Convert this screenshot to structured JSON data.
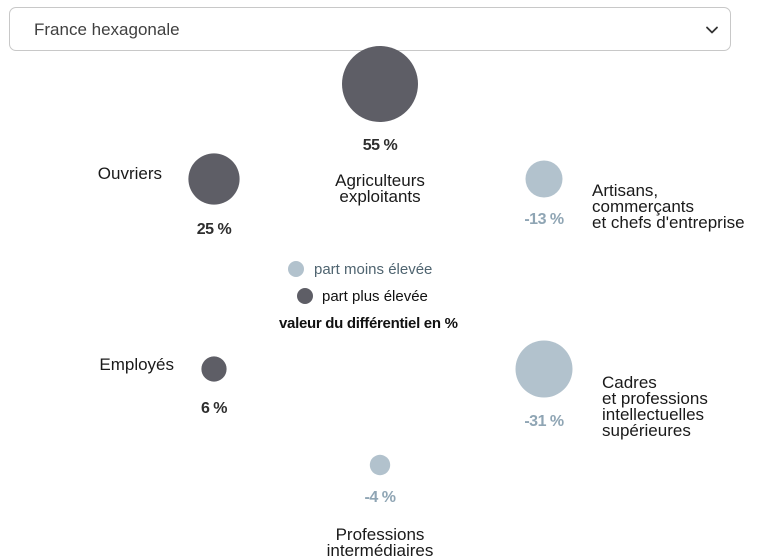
{
  "selector": {
    "value": "France hexagonale",
    "icon": "chevron-down-icon"
  },
  "colors": {
    "higher": "#5e5e66",
    "lower": "#b2c2cd",
    "lower_text": "#8fa5b4",
    "higher_text": "#2e2e2e"
  },
  "legend": {
    "lower_label": "part moins élevée",
    "higher_label": "part plus élevée",
    "title": "valeur du différentiel en %"
  },
  "chart_data": {
    "type": "scatter",
    "encoding": "bubble size = absolute differential",
    "categories": [
      "Agriculteurs exploitants",
      "Artisans, commerçants et chefs d'entreprise",
      "Cadres et professions intellectuelles supérieures",
      "Professions intermédiaires",
      "Employés",
      "Ouvriers"
    ],
    "points": [
      {
        "key": "agriculteurs",
        "label_lines": [
          "Agriculteurs",
          "exploitants"
        ],
        "value": 55,
        "value_label": "55 %"
      },
      {
        "key": "artisans",
        "label_lines": [
          "Artisans,",
          "commerçants",
          "et chefs d'entreprise"
        ],
        "value": -13,
        "value_label": "-13 %"
      },
      {
        "key": "cadres",
        "label_lines": [
          "Cadres",
          "et professions",
          "intellectuelles",
          "supérieures"
        ],
        "value": -31,
        "value_label": "-31 %"
      },
      {
        "key": "intermediaires",
        "label_lines": [
          "Professions",
          "intermédiaires"
        ],
        "value": -4,
        "value_label": "-4 %"
      },
      {
        "key": "employes",
        "label_lines": [
          "Employés"
        ],
        "value": 6,
        "value_label": "6 %"
      },
      {
        "key": "ouvriers",
        "label_lines": [
          "Ouvriers"
        ],
        "value": 25,
        "value_label": "25 %"
      }
    ]
  }
}
